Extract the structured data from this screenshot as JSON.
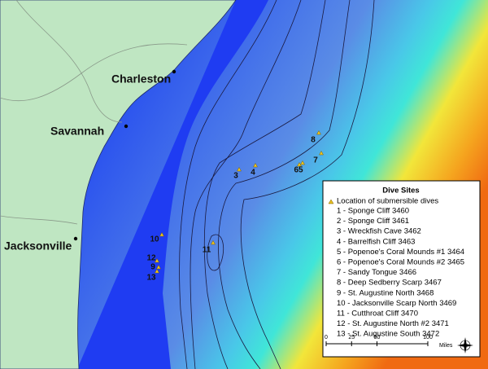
{
  "cities": [
    "Charleston",
    "Savannah",
    "Jacksonville"
  ],
  "map_labels": [
    "8",
    "7",
    "65",
    "3",
    "4",
    "10",
    "11",
    "12",
    "9",
    "13"
  ],
  "legend": {
    "title": "Dive Sites",
    "marker_label": "Location of submersible dives",
    "entries": [
      "1 - Sponge Cliff 3460",
      "2 - Sponge Cliff 3461",
      "3 - Wreckfish Cave 3462",
      "4 - Barrelfish Cliff 3463",
      "5 - Popenoe's Coral Mounds #1 3464",
      "6 - Popenoe's Coral Mounds #2 3465",
      "7 - Sandy Tongue 3466",
      "8 - Deep Sedberry Scarp 3467",
      "9 - St. Augustine North 3468",
      "10 - Jacksonville Scarp North 3469",
      "11 - Cutthroat Cliff 3470",
      "12 - St. Augustine North #2 3471",
      "13 - St. Augustine South 3472"
    ]
  },
  "scale": {
    "ticks": [
      0,
      25,
      50,
      100
    ],
    "unit": "Miles"
  }
}
